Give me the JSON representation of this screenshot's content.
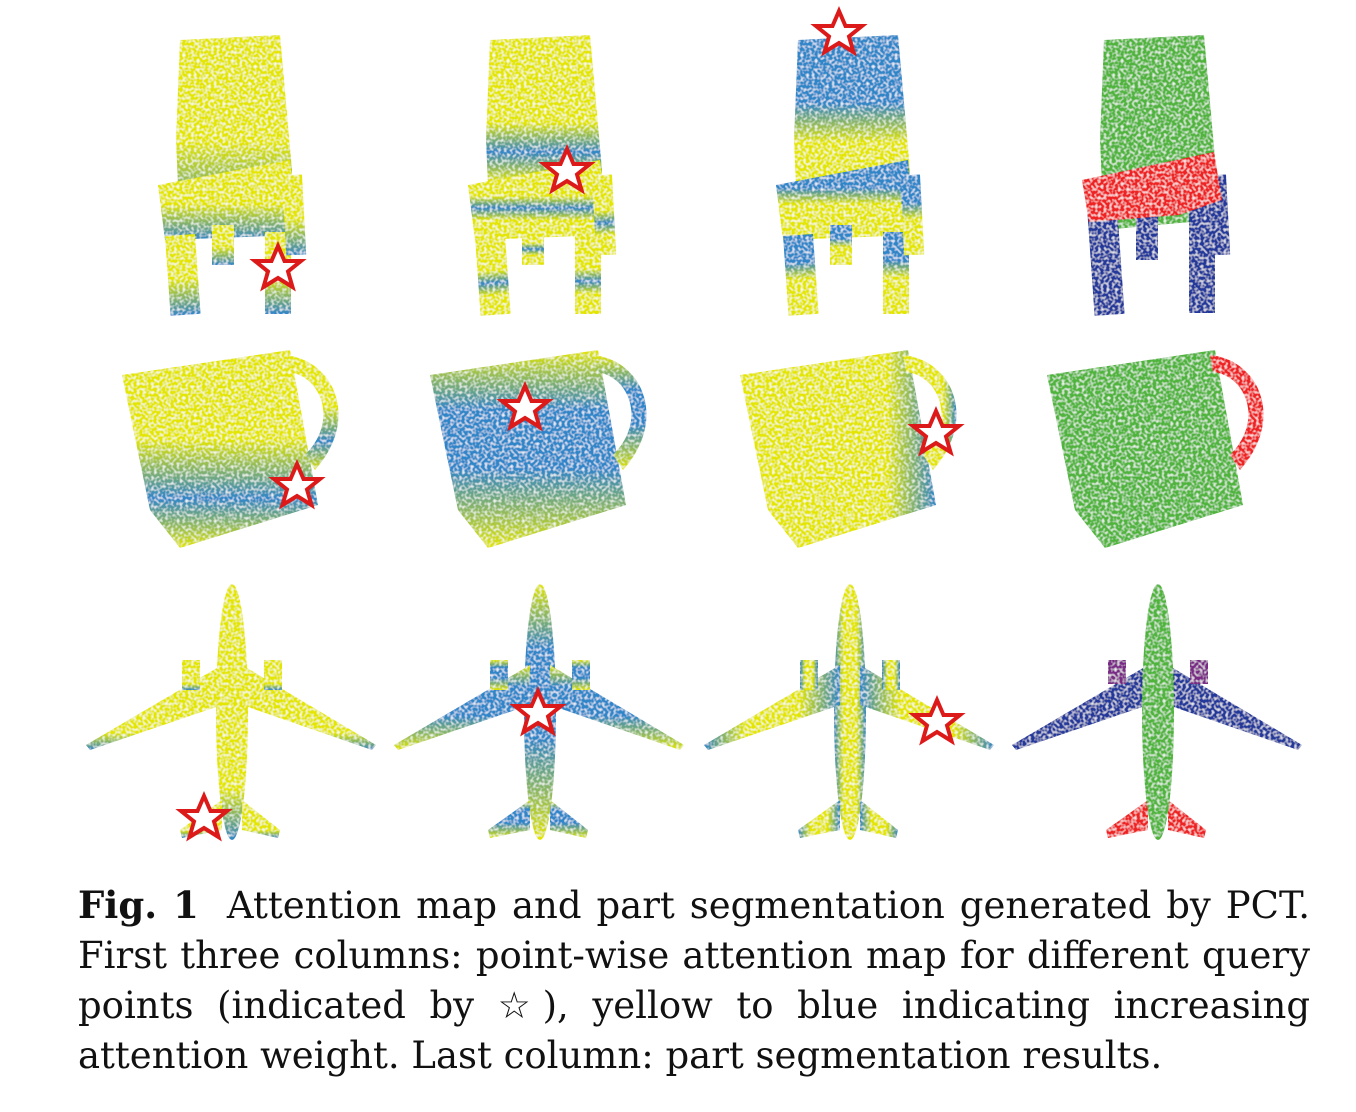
{
  "figure": {
    "rows": [
      {
        "object": "chair",
        "panels": [
          "attention",
          "attention",
          "attention",
          "segmentation"
        ]
      },
      {
        "object": "mug",
        "panels": [
          "attention",
          "attention",
          "attention",
          "segmentation"
        ]
      },
      {
        "object": "airplane",
        "panels": [
          "attention",
          "attention",
          "attention",
          "segmentation"
        ]
      }
    ],
    "query_marker_icon": "star-icon",
    "colors": {
      "attention_low": "#e4e600",
      "attention_high": "#2f86c9",
      "segment_green": "#4fb43a",
      "segment_red": "#ee2222",
      "segment_blue": "#23399a",
      "segment_purple": "#7a2a86",
      "star_outline": "#dd1a1a"
    }
  },
  "caption": {
    "label": "Fig. 1",
    "text": "Attention map and part segmentation generated by PCT. First three columns: point-wise attention map for different query points (indicated by ☆), yellow to blue indicating increasing attention weight. Last column: part segmentation results."
  }
}
